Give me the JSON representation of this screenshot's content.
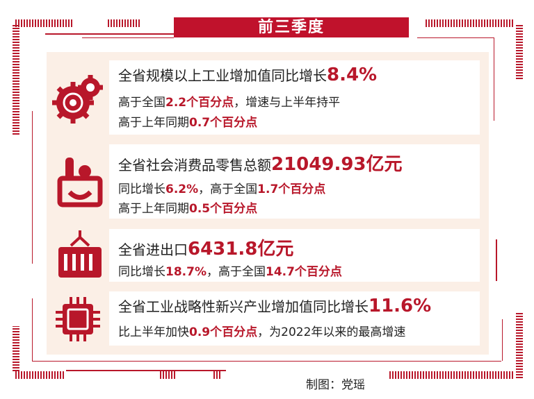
{
  "title": "前三季度",
  "colors": {
    "accent": "#b8172a",
    "panel": "#fbefe6"
  },
  "cards": [
    {
      "icon": "gears-icon",
      "lines": [
        [
          {
            "t": "全省规模以上工业增加值同比增长"
          },
          {
            "t": "8.4%",
            "em": true,
            "big": true
          }
        ],
        [
          {
            "t": "高于全国"
          },
          {
            "t": "2.2个百分点",
            "em": true
          },
          {
            "t": "，增速与上半年持平"
          }
        ],
        [
          {
            "t": "高于上年同期"
          },
          {
            "t": "0.7个百分点",
            "em": true
          }
        ]
      ]
    },
    {
      "icon": "shopping-basket-icon",
      "lines": [
        [
          {
            "t": "全省社会消费品零售总额"
          },
          {
            "t": "21049.93亿元",
            "em": true,
            "big": true
          }
        ],
        [
          {
            "t": "同比增长"
          },
          {
            "t": "6.2%",
            "em": true
          },
          {
            "t": "，高于全国"
          },
          {
            "t": "1.7个百分点",
            "em": true
          }
        ],
        [
          {
            "t": "高于上年同期"
          },
          {
            "t": "0.5个百分点",
            "em": true
          }
        ]
      ]
    },
    {
      "icon": "shipping-container-icon",
      "lines": [
        [
          {
            "t": "全省进出口"
          },
          {
            "t": "6431.8亿元",
            "em": true,
            "big": true
          }
        ],
        [
          {
            "t": "同比增长"
          },
          {
            "t": "18.7%",
            "em": true
          },
          {
            "t": "，高于全国"
          },
          {
            "t": "14.7个百分点",
            "em": true
          }
        ]
      ]
    },
    {
      "icon": "chip-icon",
      "lines": [
        [
          {
            "t": "全省工业战略性新兴产业增加值同比增长"
          },
          {
            "t": "11.6%",
            "em": true,
            "big": true
          }
        ],
        [
          {
            "t": "比上半年加快"
          },
          {
            "t": "0.9个百分点",
            "em": true
          },
          {
            "t": "，为2022年以来的最高增速"
          }
        ]
      ]
    }
  ],
  "credit": "制图：党瑶"
}
